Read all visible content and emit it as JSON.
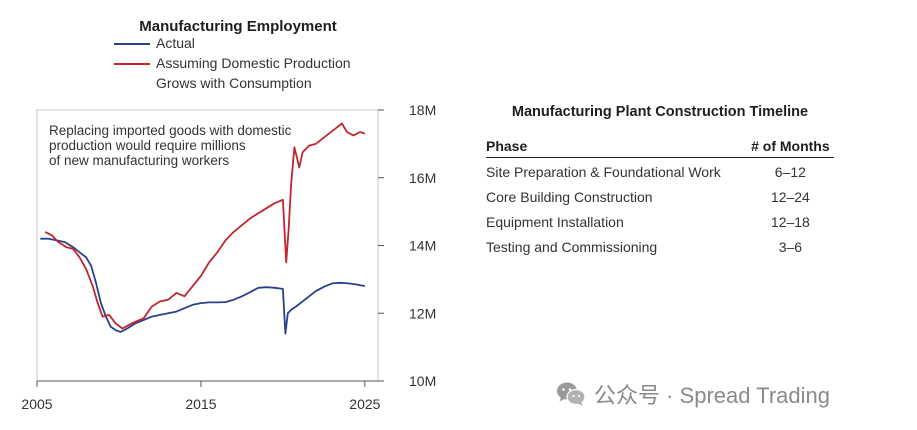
{
  "chart_data": [
    {
      "type": "line",
      "title": "Manufacturing Employment",
      "legend": [
        "Actual",
        "Assuming Domestic Production Grows with Consumption"
      ],
      "legend_lines": [
        [
          "Actual"
        ],
        [
          "Assuming Domestic Production",
          "Grows with Consumption"
        ]
      ],
      "legend_position": "top",
      "annotation_lines": [
        "Replacing imported goods with domestic",
        "production would require millions",
        "of new manufacturing workers"
      ],
      "x_ticks": [
        "2005",
        "2015",
        "2025"
      ],
      "y_ticks": [
        "10M",
        "12M",
        "14M",
        "16M",
        "18M"
      ],
      "x_tick_values": [
        2005,
        2015,
        2025
      ],
      "y_tick_values": [
        10,
        12,
        14,
        16,
        18
      ],
      "xlim": [
        2005,
        2025.8
      ],
      "ylim": [
        10,
        18
      ],
      "y_axis_side": "right",
      "units": "millions of workers",
      "series": [
        {
          "name": "Actual",
          "color": "#2b3f8f",
          "x": [
            2005.2,
            2005.7,
            2006.2,
            2006.7,
            2007.2,
            2007.6,
            2008.0,
            2008.3,
            2008.6,
            2008.9,
            2009.2,
            2009.5,
            2009.8,
            2010.1,
            2010.5,
            2011.0,
            2011.5,
            2012.0,
            2012.5,
            2013.0,
            2013.5,
            2014.0,
            2014.5,
            2015.0,
            2015.5,
            2016.0,
            2016.5,
            2017.0,
            2017.5,
            2018.0,
            2018.5,
            2019.0,
            2019.5,
            2020.0,
            2020.15,
            2020.3,
            2020.5,
            2020.8,
            2021.2,
            2021.6,
            2022.0,
            2022.5,
            2023.0,
            2023.5,
            2024.0,
            2024.5,
            2025.0
          ],
          "y": [
            14.2,
            14.2,
            14.15,
            14.1,
            13.95,
            13.8,
            13.65,
            13.4,
            12.9,
            12.3,
            11.9,
            11.6,
            11.5,
            11.45,
            11.55,
            11.7,
            11.8,
            11.9,
            11.95,
            12.0,
            12.05,
            12.15,
            12.25,
            12.3,
            12.32,
            12.32,
            12.33,
            12.4,
            12.5,
            12.62,
            12.75,
            12.77,
            12.75,
            12.72,
            11.4,
            12.0,
            12.1,
            12.2,
            12.35,
            12.5,
            12.65,
            12.78,
            12.88,
            12.9,
            12.88,
            12.85,
            12.8
          ]
        },
        {
          "name": "Assuming Domestic Production Grows with Consumption",
          "color": "#c1272d",
          "x": [
            2005.5,
            2005.9,
            2006.3,
            2006.8,
            2007.2,
            2007.6,
            2008.0,
            2008.4,
            2008.7,
            2009.0,
            2009.4,
            2009.8,
            2010.2,
            2010.6,
            2011.0,
            2011.5,
            2012.0,
            2012.5,
            2013.0,
            2013.5,
            2014.0,
            2014.5,
            2015.0,
            2015.5,
            2016.0,
            2016.5,
            2017.0,
            2017.5,
            2018.0,
            2018.5,
            2019.0,
            2019.5,
            2020.0,
            2020.2,
            2020.35,
            2020.5,
            2020.7,
            2021.0,
            2021.2,
            2021.6,
            2022.0,
            2022.4,
            2022.8,
            2023.2,
            2023.6,
            2023.9,
            2024.3,
            2024.7,
            2025.0
          ],
          "y": [
            14.4,
            14.3,
            14.1,
            13.95,
            13.9,
            13.65,
            13.3,
            12.8,
            12.3,
            11.9,
            11.95,
            11.7,
            11.55,
            11.65,
            11.75,
            11.85,
            12.2,
            12.35,
            12.4,
            12.6,
            12.5,
            12.8,
            13.1,
            13.5,
            13.8,
            14.15,
            14.4,
            14.6,
            14.8,
            14.95,
            15.1,
            15.25,
            15.35,
            13.5,
            14.5,
            15.8,
            16.9,
            16.3,
            16.75,
            16.95,
            17.0,
            17.15,
            17.3,
            17.45,
            17.6,
            17.35,
            17.25,
            17.35,
            17.3
          ]
        }
      ]
    },
    {
      "type": "table",
      "title": "Manufacturing Plant Construction Timeline",
      "columns": [
        "Phase",
        "# of Months"
      ],
      "rows": [
        [
          "Site Preparation & Foundational Work",
          "6–12"
        ],
        [
          "Core Building Construction",
          "12–24"
        ],
        [
          "Equipment Installation",
          "12–18"
        ],
        [
          "Testing and Commissioning",
          "3–6"
        ]
      ]
    }
  ],
  "watermark": {
    "text": "公众号 · Spread Trading",
    "icon": "wechat-icon"
  }
}
